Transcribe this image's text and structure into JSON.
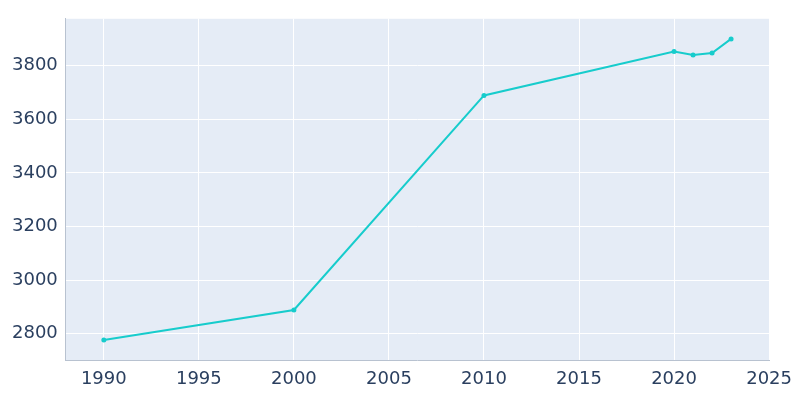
{
  "chart_data": {
    "type": "line",
    "x": [
      1990,
      2000,
      2010,
      2020,
      2021,
      2022,
      2023
    ],
    "values": [
      2776,
      2888,
      3689,
      3853,
      3840,
      3847,
      3900
    ],
    "color": "#17cccc",
    "marker": "circle",
    "xlim": [
      1988,
      2025
    ],
    "xticks": [
      1990,
      1995,
      2000,
      2005,
      2010,
      2015,
      2020,
      2025
    ],
    "ylim": [
      2700,
      3975
    ],
    "yticks": [
      2800,
      3000,
      3200,
      3400,
      3600,
      3800
    ],
    "grid": true
  }
}
